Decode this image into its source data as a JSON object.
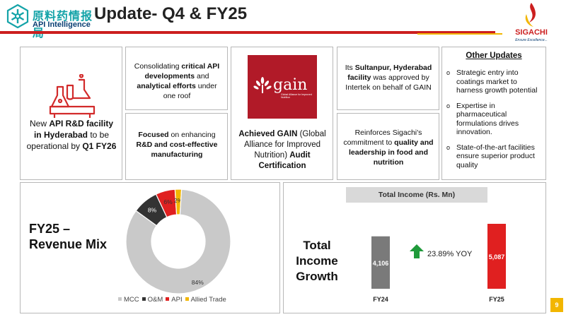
{
  "header": {
    "logo_cn": "原料药情报局",
    "logo_en": "API Intelligence",
    "title": "Update- Q4 & FY25",
    "company_name": "SIGACHI",
    "company_tagline": "Ensure Excellence...",
    "colors": {
      "accent_red": "#cc1f1f",
      "accent_yellow": "#f2b600",
      "teal": "#14a3a8"
    }
  },
  "rd_box": {
    "icon": "lab-flask-icon",
    "text_pre": "New ",
    "text_bold1": "API R&D facility in Hyderabad",
    "text_mid": " to be operational by ",
    "text_bold2": "Q1 FY26"
  },
  "consolidating_box": {
    "p1": "Consolidating ",
    "b1": "critical API developments",
    "p2": " and ",
    "b2": "analytical efforts",
    "p3": " under one roof"
  },
  "focus_box": {
    "b1": "Focused",
    "p1": " on enhancing ",
    "b2": "R&D and cost-effective manufacturing"
  },
  "gain_box": {
    "logo_word": "gain",
    "logo_sub": "Global Alliance for Improved Nutrition",
    "b1": "Achieved GAIN",
    "p1": " (Global Alliance for Improved Nutrition) ",
    "b2": "Audit Certification"
  },
  "sultanpur_box": {
    "p1": "Its ",
    "b1": "Sultanpur, Hyderabad facility",
    "p2": " was approved by Intertek on behalf of GAIN"
  },
  "reinforces_box": {
    "p1": "Reinforces Sigachi's commitment to ",
    "b1": "quality and leadership in food and nutrition"
  },
  "other_updates": {
    "title": "Other Updates",
    "bullet": "o",
    "items": [
      "Strategic entry into coatings market to harness growth potential",
      "Expertise in pharmaceutical formulations drives innovation.",
      "State-of-the-art facilities ensure superior product quality"
    ]
  },
  "revenue_mix": {
    "title_line1": "FY25 –",
    "title_line2": "Revenue Mix"
  },
  "total_income": {
    "header": "Total Income (Rs. Mn)",
    "title_line1": "Total",
    "title_line2": "Income",
    "title_line3": "Growth",
    "growth_label": "23.89% YOY",
    "growth_icon": "arrow-up-icon"
  },
  "chart_data": [
    {
      "type": "pie",
      "title": "FY25 – Revenue Mix",
      "donut": true,
      "categories": [
        "MCC",
        "O&M",
        "API",
        "Allied Trade"
      ],
      "values": [
        84,
        8,
        6,
        2
      ],
      "labels": [
        "84%",
        "8%",
        "6%",
        "2%"
      ],
      "colors": [
        "#c9c9c9",
        "#333333",
        "#e02020",
        "#f2b600"
      ],
      "legend_position": "bottom"
    },
    {
      "type": "bar",
      "title": "Total Income (Rs. Mn)",
      "categories": [
        "FY24",
        "FY25"
      ],
      "values": [
        4106,
        5087
      ],
      "labels": [
        "4,106",
        "5,087"
      ],
      "colors": [
        "#7a7a7a",
        "#e02020"
      ],
      "annotation": "23.89% YOY"
    }
  ],
  "page_number": "9"
}
